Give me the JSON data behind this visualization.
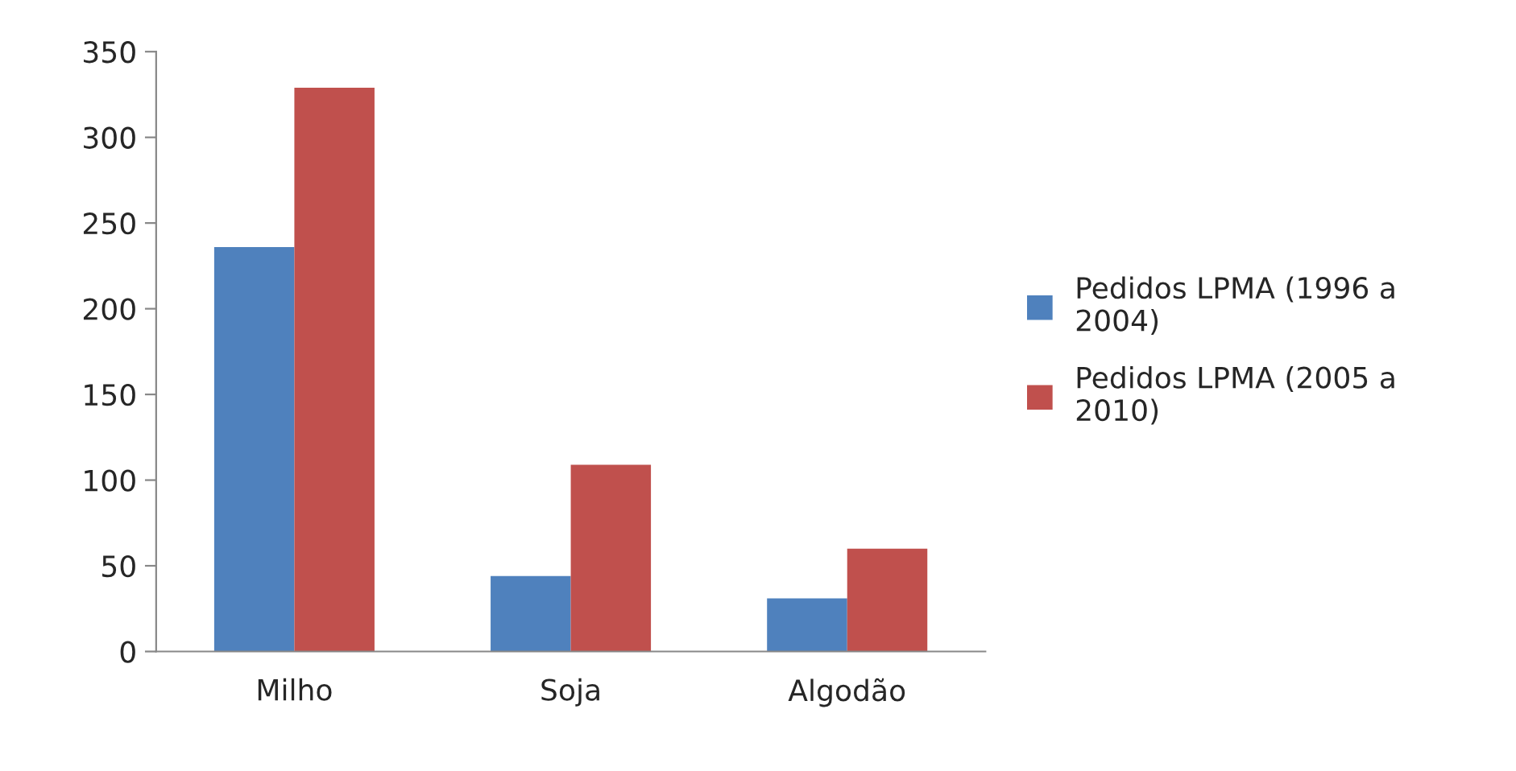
{
  "chart_data": {
    "type": "bar",
    "categories": [
      "Milho",
      "Soja",
      "Algodão"
    ],
    "series": [
      {
        "name": "Pedidos LPMA (1996 a 2004)",
        "color": "#4f81bd",
        "values": [
          236,
          44,
          31
        ]
      },
      {
        "name": "Pedidos LPMA (2005 a 2010)",
        "color": "#c0504d",
        "values": [
          329,
          109,
          60
        ]
      }
    ],
    "ylim": [
      0,
      350
    ],
    "yticks": [
      0,
      50,
      100,
      150,
      200,
      250,
      300,
      350
    ],
    "grid": false,
    "legend": "right"
  }
}
